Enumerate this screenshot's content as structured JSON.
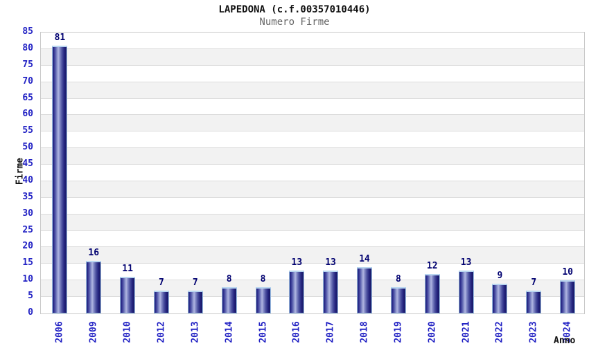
{
  "chart_data": {
    "type": "bar",
    "title": "LAPEDONA (c.f.00357010446)",
    "subtitle": "Numero Firme",
    "xlabel": "Anno",
    "ylabel": "Firme",
    "categories": [
      "2006",
      "2009",
      "2010",
      "2012",
      "2013",
      "2014",
      "2015",
      "2016",
      "2017",
      "2018",
      "2019",
      "2020",
      "2021",
      "2022",
      "2023",
      "2024"
    ],
    "values": [
      81,
      16,
      11,
      7,
      7,
      8,
      8,
      13,
      13,
      14,
      8,
      12,
      13,
      9,
      7,
      10
    ],
    "ylim": [
      0,
      85
    ],
    "ytick_step": 5,
    "grid": true,
    "legend": false,
    "colors": {
      "bar_dark": "#1c1c6e",
      "bar_light": "#aeb4e0",
      "bar_border": "#9fc3e7",
      "tick_label": "#2222c4",
      "value_label": "#000070",
      "band_gray": "#f2f2f2",
      "band_white": "#ffffff",
      "gridline": "#dcdcdc",
      "title_text": "#111111",
      "subtitle_text": "#666666"
    }
  }
}
